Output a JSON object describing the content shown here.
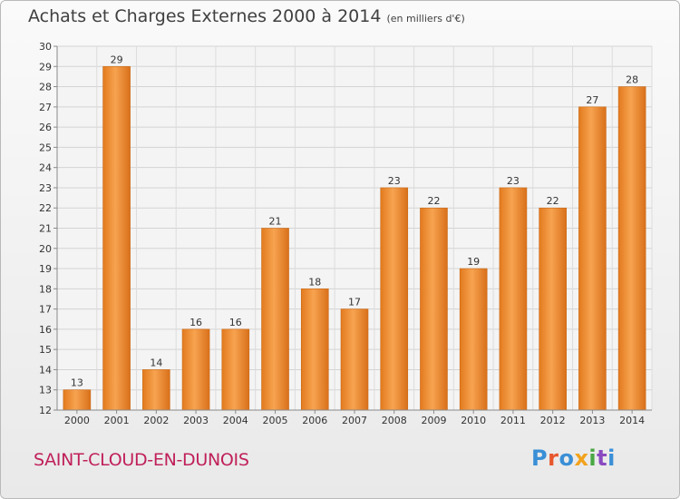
{
  "chart_data": {
    "type": "bar",
    "title": "Achats et Charges Externes 2000 à 2014",
    "subtitle": "(en milliers d'€)",
    "categories": [
      "2000",
      "2001",
      "2002",
      "2003",
      "2004",
      "2005",
      "2006",
      "2007",
      "2008",
      "2009",
      "2010",
      "2011",
      "2012",
      "2013",
      "2014"
    ],
    "values": [
      13,
      29,
      14,
      16,
      16,
      21,
      18,
      17,
      23,
      22,
      19,
      23,
      22,
      27,
      28
    ],
    "ylim": [
      12,
      30
    ],
    "yticks": [
      12,
      13,
      14,
      15,
      16,
      17,
      18,
      19,
      20,
      21,
      22,
      23,
      24,
      25,
      26,
      27,
      28,
      29,
      30
    ],
    "grid": true,
    "bar_color": "#f0913a"
  },
  "footer": {
    "commune": "SAINT-CLOUD-EN-DUNOIS",
    "logo": "Proxiti"
  },
  "colors": {
    "commune": "#c0205a",
    "logo_letters": [
      "#3a8fd6",
      "#e8572c",
      "#3a8fd6",
      "#f2a21c",
      "#4aa845",
      "#8a4ac0",
      "#3a8fd6"
    ]
  }
}
